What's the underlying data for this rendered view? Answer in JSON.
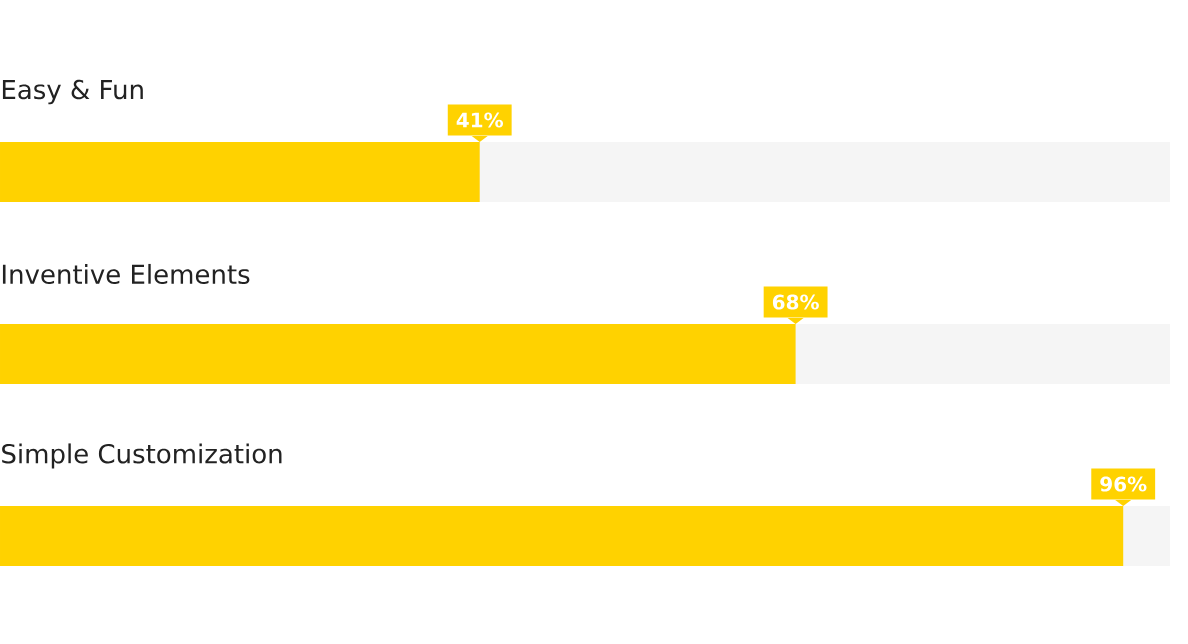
{
  "chart_data": {
    "type": "bar",
    "orientation": "horizontal",
    "categories": [
      "Easy & Fun",
      "Inventive Elements",
      "Simple Customization"
    ],
    "values": [
      41,
      68,
      96
    ],
    "value_labels": [
      "41%",
      "68%",
      "96%"
    ],
    "color": "#ffd200",
    "xlim": [
      0,
      100
    ],
    "tick_labels": false
  }
}
